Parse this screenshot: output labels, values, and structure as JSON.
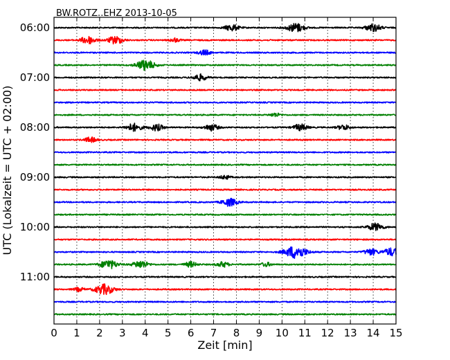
{
  "chart_data": {
    "type": "line",
    "title": "BW.ROTZ..EHZ 2013-10-05",
    "xlabel": "Zeit  [min]",
    "ylabel": "UTC (Lokalzeit = UTC + 02:00)",
    "xlim": [
      0,
      15
    ],
    "x_ticks": [
      "0",
      "1",
      "2",
      "3",
      "4",
      "5",
      "6",
      "7",
      "8",
      "9",
      "10",
      "11",
      "12",
      "13",
      "14",
      "15"
    ],
    "y_ticks": [
      "06:00",
      "07:00",
      "08:00",
      "09:00",
      "10:00",
      "11:00"
    ],
    "grid": "vertical dotted",
    "colors": [
      "#000000",
      "#ff0000",
      "#0000ff",
      "#008000"
    ],
    "traces": [
      {
        "start": "06:00",
        "events": [
          [
            7.8,
            0.5
          ],
          [
            10.6,
            0.7
          ],
          [
            14.0,
            0.6
          ]
        ]
      },
      {
        "start": "06:15",
        "events": [
          [
            1.5,
            0.6
          ],
          [
            2.7,
            0.6
          ],
          [
            5.3,
            0.3
          ]
        ]
      },
      {
        "start": "06:30",
        "events": [
          [
            6.6,
            0.4
          ]
        ]
      },
      {
        "start": "06:45",
        "events": [
          [
            4.0,
            0.8
          ]
        ]
      },
      {
        "start": "07:00",
        "events": [
          [
            6.4,
            0.5
          ]
        ]
      },
      {
        "start": "07:15",
        "events": []
      },
      {
        "start": "07:30",
        "events": []
      },
      {
        "start": "07:45",
        "events": [
          [
            9.7,
            0.3
          ]
        ]
      },
      {
        "start": "08:00",
        "events": [
          [
            3.5,
            0.6
          ],
          [
            4.5,
            0.5
          ],
          [
            6.9,
            0.5
          ],
          [
            10.8,
            0.5
          ],
          [
            12.7,
            0.4
          ]
        ]
      },
      {
        "start": "08:15",
        "events": [
          [
            1.6,
            0.4
          ]
        ]
      },
      {
        "start": "08:30",
        "events": []
      },
      {
        "start": "08:45",
        "events": []
      },
      {
        "start": "09:00",
        "events": [
          [
            7.5,
            0.3
          ]
        ]
      },
      {
        "start": "09:15",
        "events": []
      },
      {
        "start": "09:30",
        "events": [
          [
            7.7,
            0.6
          ]
        ]
      },
      {
        "start": "09:45",
        "events": []
      },
      {
        "start": "10:00",
        "events": [
          [
            14.1,
            0.6
          ]
        ]
      },
      {
        "start": "10:15",
        "events": []
      },
      {
        "start": "10:30",
        "events": [
          [
            10.6,
            1.0
          ],
          [
            13.9,
            0.5
          ],
          [
            14.8,
            0.6
          ]
        ]
      },
      {
        "start": "10:45",
        "events": [
          [
            2.4,
            0.7
          ],
          [
            3.8,
            0.6
          ],
          [
            6.0,
            0.4
          ],
          [
            7.4,
            0.4
          ],
          [
            9.3,
            0.3
          ]
        ]
      },
      {
        "start": "11:00",
        "events": []
      },
      {
        "start": "11:15",
        "events": [
          [
            1.1,
            0.3
          ],
          [
            2.2,
            0.8
          ]
        ]
      },
      {
        "start": "11:30",
        "events": []
      },
      {
        "start": "11:45",
        "events": []
      }
    ]
  }
}
